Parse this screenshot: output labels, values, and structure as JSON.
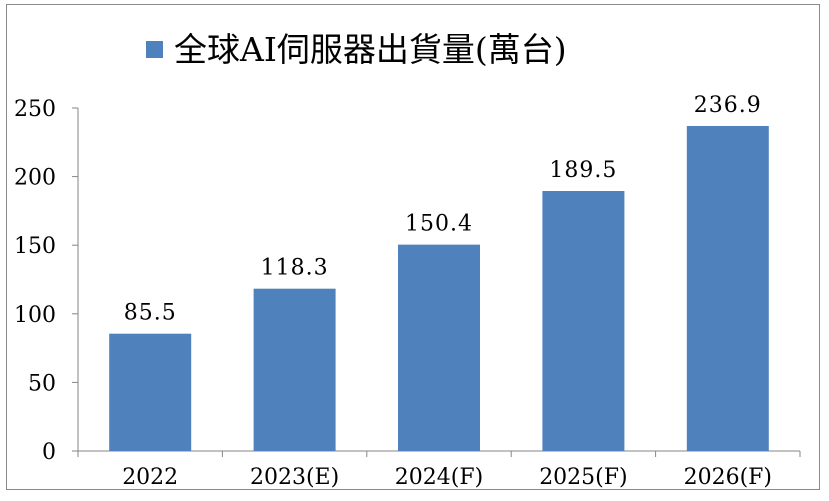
{
  "chart_data": {
    "type": "bar",
    "legend": {
      "label": "全球AI伺服器出貨量(萬台)",
      "position": "top",
      "color": "#4F81BD"
    },
    "categories": [
      "2022",
      "2023(E)",
      "2024(F)",
      "2025(F)",
      "2026(F)"
    ],
    "series": [
      {
        "name": "全球AI伺服器出貨量(萬台)",
        "values": [
          85.5,
          118.3,
          150.4,
          189.5,
          236.9
        ],
        "data_labels": [
          "85.5",
          "118.3",
          "150.4",
          "189.5",
          "236.9"
        ],
        "color": "#4F81BD"
      }
    ],
    "y_ticks": [
      "0",
      "50",
      "100",
      "150",
      "200",
      "250"
    ],
    "ylim": [
      0,
      250
    ],
    "grid": false
  }
}
